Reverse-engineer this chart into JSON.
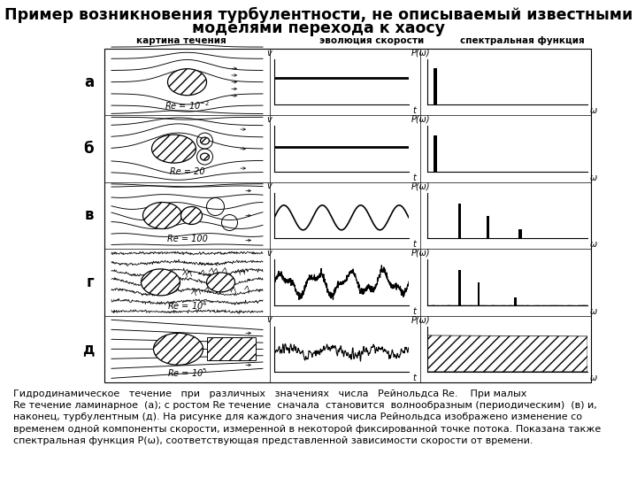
{
  "title_line1": "Пример возникновения турбулентности, не описываемый известными",
  "title_line2": "моделями перехода к хаосу",
  "col_headers": [
    "картина течения",
    "эволюция скорости",
    "спектральная функция"
  ],
  "row_labels": [
    "а",
    "б",
    "в",
    "г",
    "д"
  ],
  "re_labels": [
    "Re = 10⁻²",
    "Re = 20",
    "Re = 100",
    "Re = 10⁴",
    "Re = 10⁵"
  ],
  "caption": "Гидродинамическое   течение   при   различных   значениях   числа   Рейнольдса Re.    При малых\nRe течение ламинарное  (а); с ростом Re течение  сначала  становится  волнообразным (периодическим)  (в) и,\nнаконец, турбулентным (д). На рисунке для каждого значения числа Рейнольдса изображено изменение со\nвременем одной компоненты скорости, измеренной в некоторой фиксированной точке потока. Показана также\nспектральная функция P(ω), соответствующая представленной зависимости скорости от времени.",
  "bg_color": "#ffffff",
  "text_color": "#000000",
  "title_fontsize": 12.5,
  "caption_fontsize": 8.0,
  "header_fontsize": 7.5,
  "row_label_fontsize": 12,
  "re_fontsize": 7.0
}
